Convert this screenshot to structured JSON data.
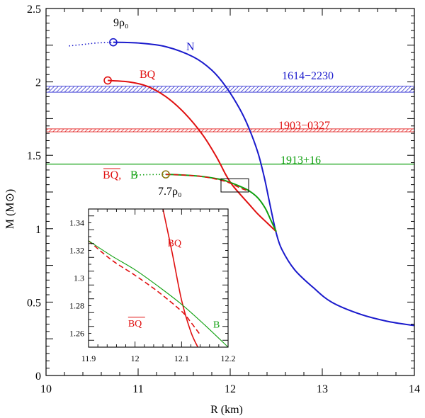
{
  "chart_data": {
    "type": "line",
    "xlabel": "R (km)",
    "ylabel": "M (M⊙)",
    "xlim": [
      10,
      14
    ],
    "ylim": [
      0,
      2.5
    ],
    "xticks": [
      10,
      11,
      12,
      13,
      14
    ],
    "yticks": [
      0,
      0.5,
      1,
      1.5,
      2,
      2.5
    ],
    "colors": {
      "N": "#1a1acc",
      "BQ": "#e01010",
      "B": "#10a010"
    },
    "series": [
      {
        "name": "N",
        "color": "#1a1acc",
        "style": "solid",
        "x": [
          10.73,
          11.0,
          11.3,
          11.6,
          11.8,
          11.95,
          12.1,
          12.2,
          12.3,
          12.37,
          12.42,
          12.46,
          12.5,
          12.56,
          12.7,
          12.9,
          13.1,
          13.4,
          13.7,
          14.0
        ],
        "y": [
          2.27,
          2.265,
          2.24,
          2.17,
          2.08,
          1.97,
          1.82,
          1.69,
          1.52,
          1.35,
          1.2,
          1.08,
          0.97,
          0.86,
          0.72,
          0.6,
          0.5,
          0.42,
          0.37,
          0.34
        ]
      },
      {
        "name": "N (unstable)",
        "color": "#1a1acc",
        "style": "dotted",
        "x": [
          10.25,
          10.4,
          10.55,
          10.73
        ],
        "y": [
          2.245,
          2.255,
          2.265,
          2.27
        ]
      },
      {
        "name": "BQ",
        "color": "#e01010",
        "style": "solid",
        "x": [
          10.67,
          10.9,
          11.1,
          11.3,
          11.5,
          11.7,
          11.85,
          11.95,
          12.02,
          12.1,
          12.2,
          12.3,
          12.4,
          12.5
        ],
        "y": [
          2.01,
          2.0,
          1.97,
          1.9,
          1.79,
          1.64,
          1.49,
          1.37,
          1.3,
          1.24,
          1.17,
          1.1,
          1.04,
          0.98
        ]
      },
      {
        "name": "B",
        "color": "#10a010",
        "style": "solid",
        "x": [
          11.3,
          11.5,
          11.7,
          11.9,
          12.0,
          12.1,
          12.2,
          12.3,
          12.38,
          12.44,
          12.5
        ],
        "y": [
          1.37,
          1.365,
          1.355,
          1.335,
          1.315,
          1.29,
          1.26,
          1.21,
          1.14,
          1.06,
          0.98
        ]
      },
      {
        "name": "BQbar",
        "color": "#e01010",
        "style": "dashed",
        "x": [
          11.3,
          11.5,
          11.7,
          11.9,
          12.0,
          12.1,
          12.16,
          12.2
        ],
        "y": [
          1.37,
          1.365,
          1.355,
          1.33,
          1.31,
          1.28,
          1.265,
          1.255
        ]
      },
      {
        "name": "B (unstable)",
        "color": "#10a010",
        "style": "dotted",
        "x": [
          10.95,
          11.1,
          11.3
        ],
        "y": [
          1.365,
          1.368,
          1.37
        ]
      }
    ],
    "bands": [
      {
        "label": "1614−2230",
        "ymin": 1.93,
        "ymax": 1.97,
        "color": "#1a1acc"
      },
      {
        "label": "1903−0327",
        "ymin": 1.66,
        "ymax": 1.68,
        "color": "#e01010"
      },
      {
        "label": "1913+16",
        "y": 1.44,
        "color": "#10a010"
      }
    ],
    "markers": [
      {
        "series": "N",
        "x": 10.73,
        "y": 2.27,
        "color": "#1a1acc"
      },
      {
        "series": "BQ",
        "x": 10.67,
        "y": 2.01,
        "color": "#e01010"
      },
      {
        "series": "B",
        "x": 11.3,
        "y": 1.37,
        "color": "#8a7a10"
      }
    ],
    "annotations": {
      "density_n": "9ρ₀",
      "density_b": "7.7ρ₀",
      "label_n": "N",
      "label_bq": "BQ",
      "label_bqbar": "BQ,",
      "label_b": "B"
    },
    "zoom_box": {
      "xlim": [
        11.9,
        12.2
      ],
      "ylim": [
        1.25,
        1.34
      ]
    },
    "inset": {
      "xlim": [
        11.9,
        12.2
      ],
      "ylim": [
        1.25,
        1.35
      ],
      "xticks": [
        "11.9",
        "12",
        "12.1",
        "12.2"
      ],
      "yticks": [
        "1.26",
        "1.28",
        "1.3",
        "1.32",
        "1.34"
      ],
      "series": [
        {
          "name": "BQ",
          "color": "#e01010",
          "style": "solid",
          "x": [
            12.06,
            12.08,
            12.1,
            12.12,
            12.135
          ],
          "y": [
            1.35,
            1.318,
            1.284,
            1.261,
            1.25
          ]
        },
        {
          "name": "BQbar",
          "color": "#e01010",
          "style": "dashed",
          "x": [
            11.9,
            11.95,
            12.0,
            12.05,
            12.1,
            12.12,
            12.14
          ],
          "y": [
            1.327,
            1.313,
            1.302,
            1.29,
            1.276,
            1.268,
            1.259
          ]
        },
        {
          "name": "B",
          "color": "#10a010",
          "style": "solid",
          "x": [
            11.9,
            11.95,
            12.0,
            12.05,
            12.1,
            12.15,
            12.2
          ],
          "y": [
            1.327,
            1.316,
            1.306,
            1.294,
            1.281,
            1.266,
            1.25
          ]
        }
      ],
      "labels": {
        "bq": "BQ",
        "bqbar": "BQ",
        "b": "B"
      }
    }
  }
}
